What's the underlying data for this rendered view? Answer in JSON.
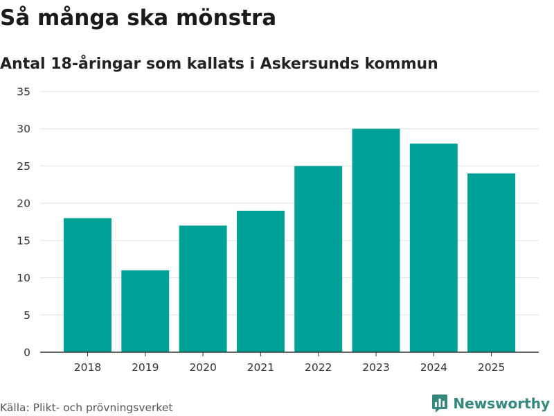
{
  "header": {
    "title": "Så många ska mönstra",
    "subtitle": "Antal 18-åringar som kallats i Askersunds kommun"
  },
  "footer": {
    "source": "Källa: Plikt- och prövningsverket",
    "brand": "Newsworthy"
  },
  "colors": {
    "bar": "#00a298",
    "grid": "#e1e1e1",
    "axis": "#333333",
    "brand": "#33877b"
  },
  "chart_data": {
    "type": "bar",
    "title": "Så många ska mönstra",
    "subtitle": "Antal 18-åringar som kallats i Askersunds kommun",
    "xlabel": "",
    "ylabel": "",
    "categories": [
      "2018",
      "2019",
      "2020",
      "2021",
      "2022",
      "2023",
      "2024",
      "2025"
    ],
    "values": [
      18,
      11,
      17,
      19,
      25,
      30,
      28,
      24
    ],
    "ylim": [
      0,
      35
    ],
    "yticks": [
      0,
      5,
      10,
      15,
      20,
      25,
      30,
      35
    ],
    "grid": true,
    "legend": "none"
  }
}
